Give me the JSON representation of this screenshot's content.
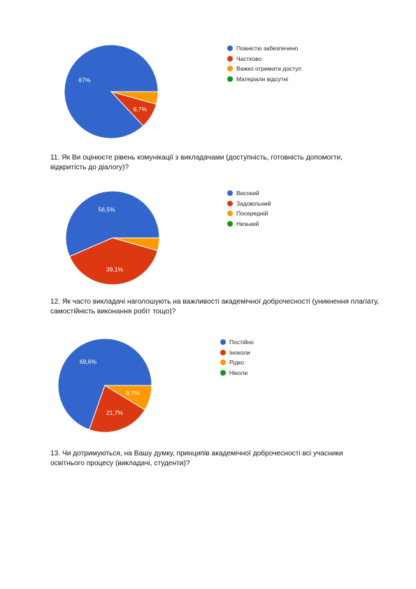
{
  "charts": [
    {
      "type": "pie",
      "categories": [
        "Повністю забезпечено",
        "Частково",
        "Важко отримати доступ",
        "Матеріали відсутні"
      ],
      "values": [
        87,
        8.7,
        4.3,
        0
      ],
      "slice_labels": [
        "87%",
        "8,7%",
        "",
        ""
      ],
      "colors": [
        "#3366cc",
        "#dc3912",
        "#ff9900",
        "#109618"
      ]
    },
    {
      "type": "pie",
      "categories": [
        "Високий",
        "Задовільний",
        "Посередній",
        "Низький"
      ],
      "values": [
        56.5,
        39.1,
        4.4,
        0
      ],
      "slice_labels": [
        "56,5%",
        "39,1%",
        "",
        ""
      ],
      "colors": [
        "#3366cc",
        "#dc3912",
        "#ff9900",
        "#109618"
      ]
    },
    {
      "type": "pie",
      "categories": [
        "Постійно",
        "Іноколи",
        "Рідко",
        "Ніколи"
      ],
      "values": [
        69.6,
        21.7,
        8.7,
        0
      ],
      "slice_labels": [
        "69,6%",
        "21,7%",
        "8,7%",
        ""
      ],
      "colors": [
        "#3366cc",
        "#dc3912",
        "#ff9900",
        "#109618"
      ]
    }
  ],
  "questions": {
    "q11": "11. Як Ви оцінюєте рівень комунікації з викладачами (доступність, готовність допомогти, відкритість до діалогу)?",
    "q12": "12. Як часто викладачі наголошують на важливості академічної доброчесності (уникнення плагіату, самостійність виконання робіт тощо)?",
    "q13": "13. Чи дотримуються, на Вашу думку, принципів академічної доброчесності всі учасники освітнього процесу (викладачі, студенти)?"
  }
}
